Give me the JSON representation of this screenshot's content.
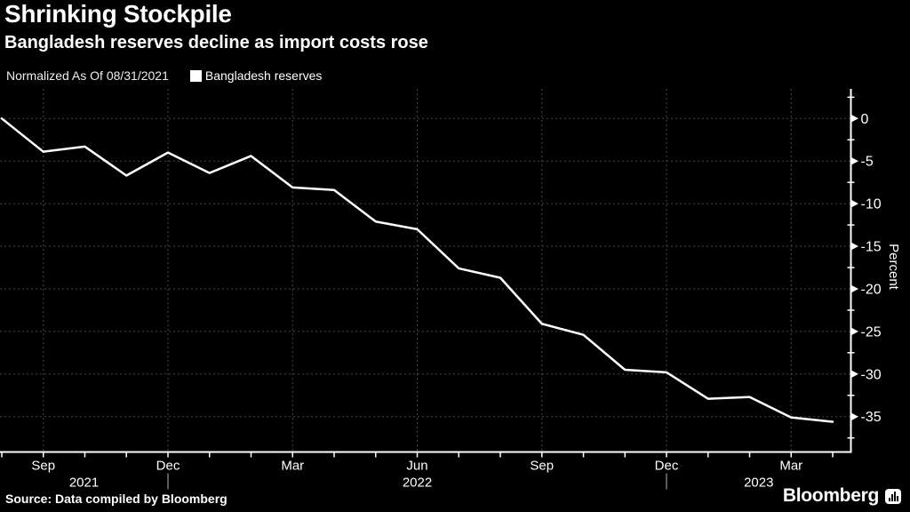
{
  "header": {
    "title": "Shrinking Stockpile",
    "subtitle": "Bangladesh reserves decline as import costs rose",
    "note": "Normalized As Of 08/31/2021",
    "legend": [
      {
        "label": "Bangladesh reserves",
        "color": "#ffffff"
      }
    ]
  },
  "footer": {
    "source": "Source: Data compiled by Bloomberg",
    "brand": "Bloomberg"
  },
  "colors": {
    "background": "#000000",
    "foreground": "#ffffff",
    "grid": "#474747",
    "series": "#ffffff"
  },
  "chart_data": {
    "type": "line",
    "title": "Shrinking Stockpile",
    "subtitle": "Bangladesh reserves decline as import costs rose",
    "note": "Normalized As Of 08/31/2021",
    "ylabel": "Percent",
    "grid": "dashed",
    "legend_position": "top-left",
    "ylim": [
      -39,
      3
    ],
    "x": [
      "Aug 2021",
      "Sep 2021",
      "Oct 2021",
      "Nov 2021",
      "Dec 2021",
      "Jan 2022",
      "Feb 2022",
      "Mar 2022",
      "Apr 2022",
      "May 2022",
      "Jun 2022",
      "Jul 2022",
      "Aug 2022",
      "Sep 2022",
      "Oct 2022",
      "Nov 2022",
      "Dec 2022",
      "Jan 2023",
      "Feb 2023",
      "Mar 2023",
      "Apr 2023"
    ],
    "series": [
      {
        "name": "Bangladesh reserves",
        "color": "#ffffff",
        "values": [
          0,
          -3.9,
          -3.3,
          -6.7,
          -4.0,
          -6.4,
          -4.4,
          -8.1,
          -8.4,
          -12.1,
          -13.0,
          -17.6,
          -18.7,
          -24.1,
          -25.4,
          -29.5,
          -29.8,
          -32.9,
          -32.7,
          -35.1,
          -35.6
        ]
      }
    ],
    "y_major_ticks": [
      0,
      -5,
      -10,
      -15,
      -20,
      -25,
      -30,
      -35
    ],
    "y_minor_ticks": [
      2.5,
      -2.5,
      -7.5,
      -12.5,
      -17.5,
      -22.5,
      -27.5,
      -32.5,
      -37.5
    ],
    "x_ticks": [
      {
        "index": 1,
        "label": "Sep"
      },
      {
        "index": 4,
        "label": "Dec"
      },
      {
        "index": 7,
        "label": "Mar"
      },
      {
        "index": 10,
        "label": "Jun"
      },
      {
        "index": 13,
        "label": "Sep"
      },
      {
        "index": 16,
        "label": "Dec"
      },
      {
        "index": 19,
        "label": "Mar"
      }
    ],
    "year_labels": [
      "2021",
      "2022",
      "2023"
    ],
    "year_separator_indices": [
      4,
      16
    ]
  }
}
